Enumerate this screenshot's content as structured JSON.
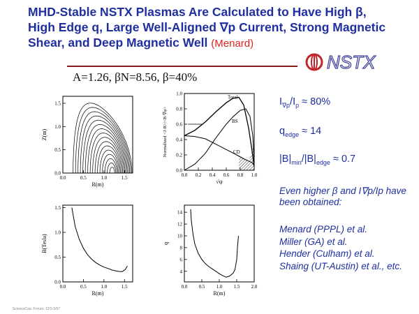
{
  "slide": {
    "title": "MHD-Stable NSTX Plasmas Are Calculated to Have High β, High Edge q, Large Well-Aligned ∇p Current, Strong Magnetic Shear, and Deep Magnetic Well",
    "author": "(Menard)",
    "logo_text": "NSTX",
    "header_formula": "A=1.26,  βN=8.56,  β=40%",
    "footer": "ScienceCop. Forum. 12/3-5/97"
  },
  "stats": {
    "ip_ratio_main": "I",
    "ip_ratio_sub1": "∇p",
    "ip_ratio_mid": "/I",
    "ip_ratio_sub2": "p",
    "ip_ratio_value": " ≈ 80%",
    "qedge_main": "q",
    "qedge_sub": "edge",
    "qedge_value": " ≈ 14",
    "bwell_a": "|B|",
    "bwell_sub1": "min",
    "bwell_b": "/|B|",
    "bwell_sub2": "edge",
    "bwell_value": " ≈ 0.7"
  },
  "note": "Even higher β and I∇p/Ip have been obtained:",
  "references": [
    "Menard (PPPL) et al.",
    "Miller (GA) et al.",
    "Hender (Culham) et al.",
    "Shaing (UT-Austin) et al., etc."
  ],
  "chart_data": [
    {
      "type": "contour",
      "xlabel": "R(m)",
      "ylabel": "Z(m)",
      "x_ticks": [
        "0.0",
        "0.5",
        "1.0",
        "1.5"
      ],
      "y_ticks": [
        "0.0",
        "0.5",
        "1.0",
        "1.5"
      ],
      "xlim": [
        0,
        1.7
      ],
      "ylim": [
        0,
        1.65
      ],
      "contours": 16
    },
    {
      "type": "line",
      "xlabel": "√ψ",
      "ylabel": "Normalized <J·B>/<B·∇φ>",
      "x_ticks": [
        "0.0",
        "0.2",
        "0.4",
        "0.6",
        "0.8",
        "1.0"
      ],
      "y_ticks": [
        "0.0",
        "0.2",
        "0.4",
        "0.6",
        "0.8",
        "1.0"
      ],
      "xlim": [
        0,
        1.0
      ],
      "ylim": [
        0,
        1.0
      ],
      "series": [
        {
          "name": "Total",
          "x": [
            0,
            0.15,
            0.3,
            0.45,
            0.6,
            0.7,
            0.78,
            0.85,
            0.92,
            0.97,
            1.0
          ],
          "y": [
            0.45,
            0.52,
            0.63,
            0.76,
            0.88,
            0.94,
            0.95,
            0.85,
            0.55,
            0.25,
            0.05
          ]
        },
        {
          "name": "BS",
          "x": [
            0,
            0.15,
            0.3,
            0.45,
            0.6,
            0.7,
            0.8,
            0.88,
            0.94,
            0.98,
            1.0
          ],
          "y": [
            0.0,
            0.08,
            0.22,
            0.42,
            0.6,
            0.7,
            0.78,
            0.8,
            0.7,
            0.45,
            0.1
          ]
        },
        {
          "name": "CD",
          "x": [
            0,
            0.15,
            0.3,
            0.45,
            0.6,
            0.75,
            0.85,
            0.92,
            0.97,
            1.0
          ],
          "y": [
            0.45,
            0.44,
            0.41,
            0.34,
            0.27,
            0.2,
            0.15,
            0.12,
            0.1,
            0.06
          ]
        }
      ]
    },
    {
      "type": "line",
      "xlabel": "R(m)",
      "ylabel": "B(Tesla)",
      "x_ticks": [
        "0.0",
        "0.5",
        "1.0",
        "1.5"
      ],
      "y_ticks": [
        "0.0",
        "0.5",
        "1.0",
        "1.5"
      ],
      "xlim": [
        0,
        1.7
      ],
      "ylim": [
        0,
        1.55
      ],
      "series": [
        {
          "name": "",
          "x": [
            0.22,
            0.3,
            0.4,
            0.5,
            0.6,
            0.7,
            0.8,
            0.9,
            1.0,
            1.1,
            1.2,
            1.3,
            1.38,
            1.45,
            1.52,
            1.57
          ],
          "y": [
            1.5,
            1.12,
            0.86,
            0.68,
            0.55,
            0.46,
            0.39,
            0.34,
            0.3,
            0.27,
            0.24,
            0.22,
            0.21,
            0.21,
            0.25,
            0.32
          ]
        }
      ]
    },
    {
      "type": "line",
      "xlabel": "R(m)",
      "ylabel": "q",
      "x_ticks": [
        "0.0",
        "0.5",
        "1.0",
        "1.5",
        "2.0"
      ],
      "y_ticks": [
        "4",
        "6",
        "8",
        "10",
        "12",
        "14"
      ],
      "xlim": [
        0,
        2.0
      ],
      "ylim": [
        2.2,
        15.2
      ],
      "series": [
        {
          "name": "",
          "x": [
            0.18,
            0.2,
            0.25,
            0.3,
            0.4,
            0.5,
            0.6,
            0.7,
            0.8,
            0.9,
            1.0,
            1.1,
            1.2,
            1.3,
            1.4,
            1.45,
            1.5,
            1.52,
            1.55
          ],
          "y": [
            14.5,
            12.5,
            10.2,
            8.6,
            7.0,
            6.0,
            5.3,
            4.8,
            4.4,
            4.0,
            3.6,
            3.25,
            3.0,
            3.2,
            3.7,
            4.3,
            6.0,
            8.0,
            10.0
          ]
        }
      ]
    }
  ]
}
